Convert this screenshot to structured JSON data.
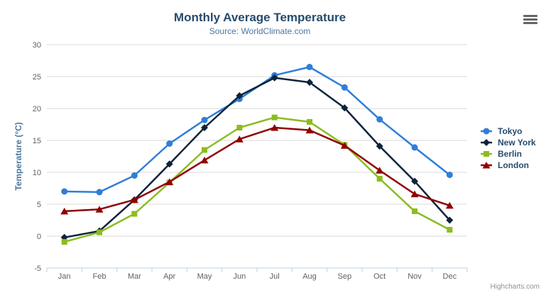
{
  "chart": {
    "credit": "Highcharts.com",
    "context_menu_icon": "hamburger-icon"
  },
  "chart_data": {
    "type": "line",
    "title": "Monthly Average Temperature",
    "subtitle": "Source: WorldClimate.com",
    "categories": [
      "Jan",
      "Feb",
      "Mar",
      "Apr",
      "May",
      "Jun",
      "Jul",
      "Aug",
      "Sep",
      "Oct",
      "Nov",
      "Dec"
    ],
    "series": [
      {
        "name": "Tokyo",
        "color": "#2f7ed8",
        "marker": "circle",
        "values": [
          7.0,
          6.9,
          9.5,
          14.5,
          18.2,
          21.5,
          25.2,
          26.5,
          23.3,
          18.3,
          13.9,
          9.6
        ]
      },
      {
        "name": "New York",
        "color": "#0d233a",
        "marker": "diamond",
        "values": [
          -0.2,
          0.8,
          5.7,
          11.3,
          17.0,
          22.0,
          24.8,
          24.1,
          20.1,
          14.1,
          8.6,
          2.5
        ]
      },
      {
        "name": "Berlin",
        "color": "#8bbc21",
        "marker": "square",
        "values": [
          -0.9,
          0.6,
          3.5,
          8.4,
          13.5,
          17.0,
          18.6,
          17.9,
          14.3,
          9.0,
          3.9,
          1.0
        ]
      },
      {
        "name": "London",
        "color": "#910000",
        "marker": "triangle",
        "values": [
          3.9,
          4.2,
          5.7,
          8.5,
          11.9,
          15.2,
          17.0,
          16.6,
          14.2,
          10.3,
          6.6,
          4.8
        ]
      }
    ],
    "xlabel": "",
    "ylabel": "Temperature (°C)",
    "ylim": [
      -5,
      30
    ],
    "ytick_interval": 5,
    "grid": true,
    "legend_position": "right",
    "colors": {
      "title": "#274b6d",
      "subtitle": "#4d759e",
      "axis_labels": "#606060",
      "gridline": "#d8d8d8",
      "axis_line": "#c0d0e0"
    }
  }
}
